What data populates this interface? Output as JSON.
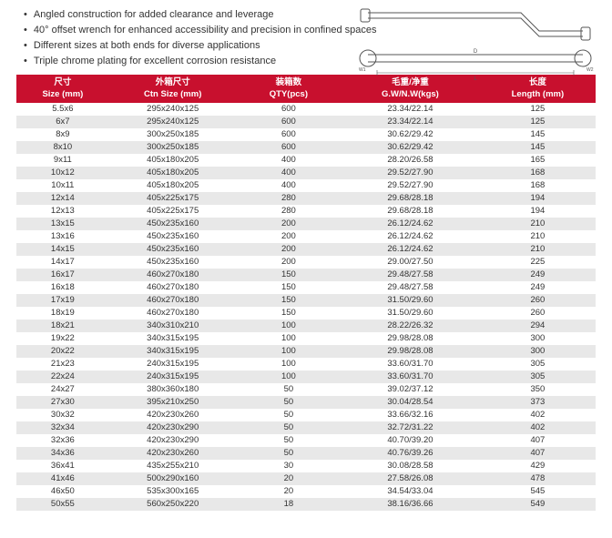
{
  "features": [
    "Angled construction for added clearance and leverage",
    "40° offset wrench for enhanced accessibility and precision in confined spaces",
    "Different sizes at both ends for diverse applications",
    "Triple chrome plating for excellent corrosion resistance"
  ],
  "diagram": {
    "stroke": "#555",
    "label_D": "D",
    "label_L": "L",
    "label_W1": "W1",
    "label_W2": "W2"
  },
  "table": {
    "header_bg": "#c8102e",
    "header_fg": "#ffffff",
    "row_alt_bg": "#e8e8e8",
    "columns": [
      {
        "cn": "尺寸",
        "en": "Size (mm)"
      },
      {
        "cn": "外箱尺寸",
        "en": "Ctn Size (mm)"
      },
      {
        "cn": "装箱数",
        "en": "QTY(pcs)"
      },
      {
        "cn": "毛重/净重",
        "en": "G.W/N.W(kgs)"
      },
      {
        "cn": "长度",
        "en": "Length (mm)"
      }
    ],
    "rows": [
      [
        "5.5x6",
        "295x240x125",
        "600",
        "23.34/22.14",
        "125"
      ],
      [
        "6x7",
        "295x240x125",
        "600",
        "23.34/22.14",
        "125"
      ],
      [
        "8x9",
        "300x250x185",
        "600",
        "30.62/29.42",
        "145"
      ],
      [
        "8x10",
        "300x250x185",
        "600",
        "30.62/29.42",
        "145"
      ],
      [
        "9x11",
        "405x180x205",
        "400",
        "28.20/26.58",
        "165"
      ],
      [
        "10x12",
        "405x180x205",
        "400",
        "29.52/27.90",
        "168"
      ],
      [
        "10x11",
        "405x180x205",
        "400",
        "29.52/27.90",
        "168"
      ],
      [
        "12x14",
        "405x225x175",
        "280",
        "29.68/28.18",
        "194"
      ],
      [
        "12x13",
        "405x225x175",
        "280",
        "29.68/28.18",
        "194"
      ],
      [
        "13x15",
        "450x235x160",
        "200",
        "26.12/24.62",
        "210"
      ],
      [
        "13x16",
        "450x235x160",
        "200",
        "26.12/24.62",
        "210"
      ],
      [
        "14x15",
        "450x235x160",
        "200",
        "26.12/24.62",
        "210"
      ],
      [
        "14x17",
        "450x235x160",
        "200",
        "29.00/27.50",
        "225"
      ],
      [
        "16x17",
        "460x270x180",
        "150",
        "29.48/27.58",
        "249"
      ],
      [
        "16x18",
        "460x270x180",
        "150",
        "29.48/27.58",
        "249"
      ],
      [
        "17x19",
        "460x270x180",
        "150",
        "31.50/29.60",
        "260"
      ],
      [
        "18x19",
        "460x270x180",
        "150",
        "31.50/29.60",
        "260"
      ],
      [
        "18x21",
        "340x310x210",
        "100",
        "28.22/26.32",
        "294"
      ],
      [
        "19x22",
        "340x315x195",
        "100",
        "29.98/28.08",
        "300"
      ],
      [
        "20x22",
        "340x315x195",
        "100",
        "29.98/28.08",
        "300"
      ],
      [
        "21x23",
        "240x315x195",
        "100",
        "33.60/31.70",
        "305"
      ],
      [
        "22x24",
        "240x315x195",
        "100",
        "33.60/31.70",
        "305"
      ],
      [
        "24x27",
        "380x360x180",
        "50",
        "39.02/37.12",
        "350"
      ],
      [
        "27x30",
        "395x210x250",
        "50",
        "30.04/28.54",
        "373"
      ],
      [
        "30x32",
        "420x230x260",
        "50",
        "33.66/32.16",
        "402"
      ],
      [
        "32x34",
        "420x230x290",
        "50",
        "32.72/31.22",
        "402"
      ],
      [
        "32x36",
        "420x230x290",
        "50",
        "40.70/39.20",
        "407"
      ],
      [
        "34x36",
        "420x230x260",
        "50",
        "40.76/39.26",
        "407"
      ],
      [
        "36x41",
        "435x255x210",
        "30",
        "30.08/28.58",
        "429"
      ],
      [
        "41x46",
        "500x290x160",
        "20",
        "27.58/26.08",
        "478"
      ],
      [
        "46x50",
        "535x300x165",
        "20",
        "34.54/33.04",
        "545"
      ],
      [
        "50x55",
        "560x250x220",
        "18",
        "38.16/36.66",
        "549"
      ]
    ]
  }
}
